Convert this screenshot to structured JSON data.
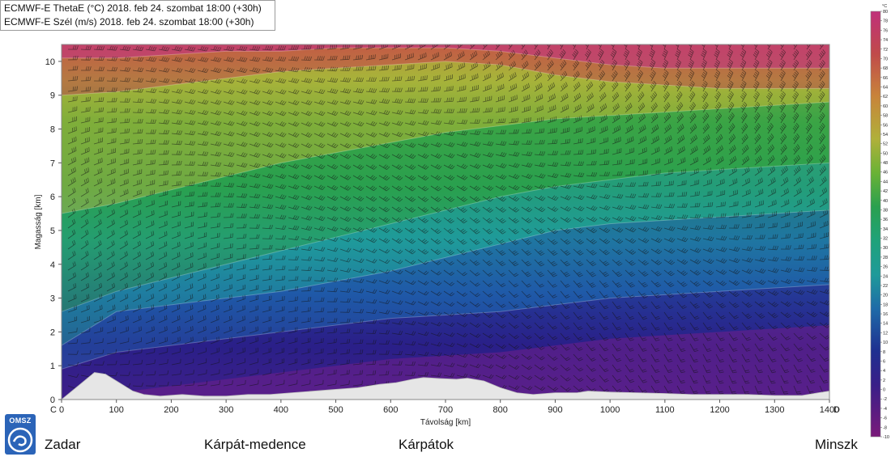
{
  "header": {
    "line1": "ECMWF-E ThetaE (°C) 2018. feb 24. szombat 18:00 (+30h)",
    "line2": "ECMWF-E Szél (m/s) 2018. feb 24. szombat 18:00 (+30h)"
  },
  "logo": {
    "text": "OMSZ",
    "icon": "omsz-logo-icon"
  },
  "places": [
    "Zadar",
    "Kárpát-medence",
    "Kárpátok",
    "Minszk"
  ],
  "colors": {
    "terrain": "#e6e6e6",
    "scale": [
      "#7a1a7a",
      "#5a1f8a",
      "#2a1f88",
      "#1f2f90",
      "#1f5aa8",
      "#1f8a9a",
      "#1fa28a",
      "#2aa04f",
      "#4ea83a",
      "#7ab535",
      "#a8b23a",
      "#c8a43a",
      "#c8783a",
      "#c04a4a",
      "#b03060",
      "#c0307a"
    ]
  },
  "chart_data": {
    "type": "heatmap",
    "title": "",
    "xlabel": "Távolság [km]",
    "ylabel": "Magasság [km]",
    "xlim": [
      0,
      1400
    ],
    "ylim": [
      0,
      10.5
    ],
    "x_ticks": [
      "0",
      "100",
      "200",
      "300",
      "400",
      "500",
      "600",
      "700",
      "800",
      "900",
      "1000",
      "1100",
      "1200",
      "1300",
      "1400"
    ],
    "y_ticks": [
      "0",
      "1",
      "2",
      "3",
      "4",
      "5",
      "6",
      "7",
      "8",
      "9",
      "10"
    ],
    "x_start_label": "C",
    "x_end_label": "D",
    "colorbar": {
      "unit": "°C",
      "min": -10,
      "max": 80,
      "ticks": [
        "80",
        "78",
        "76",
        "74",
        "72",
        "70",
        "68",
        "66",
        "64",
        "62",
        "60",
        "58",
        "56",
        "54",
        "52",
        "50",
        "48",
        "46",
        "44",
        "42",
        "40",
        "38",
        "36",
        "34",
        "32",
        "30",
        "28",
        "26",
        "24",
        "22",
        "20",
        "18",
        "16",
        "14",
        "12",
        "10",
        "8",
        "6",
        "4",
        "2",
        "0",
        "-2",
        "-4",
        "-6",
        "-8",
        "-10"
      ]
    },
    "terrain_km": {
      "x": [
        0,
        30,
        60,
        80,
        100,
        130,
        150,
        180,
        220,
        260,
        300,
        340,
        380,
        420,
        460,
        500,
        540,
        580,
        610,
        640,
        660,
        690,
        720,
        740,
        770,
        800,
        830,
        860,
        900,
        940,
        960,
        1000,
        1050,
        1100,
        1150,
        1200,
        1250,
        1300,
        1350,
        1380,
        1400
      ],
      "y": [
        0,
        0.4,
        0.8,
        0.75,
        0.55,
        0.25,
        0.15,
        0.1,
        0.15,
        0.1,
        0.1,
        0.15,
        0.15,
        0.2,
        0.25,
        0.3,
        0.35,
        0.45,
        0.5,
        0.6,
        0.65,
        0.62,
        0.6,
        0.63,
        0.55,
        0.35,
        0.2,
        0.15,
        0.2,
        0.2,
        0.25,
        0.22,
        0.2,
        0.18,
        0.15,
        0.15,
        0.15,
        0.12,
        0.12,
        0.2,
        0.25
      ]
    },
    "thetae_isolines_km": {
      "x": [
        0,
        100,
        200,
        300,
        400,
        500,
        600,
        700,
        800,
        900,
        1000,
        1100,
        1200,
        1300,
        1400
      ],
      "levels": [
        {
          "value": 0,
          "y": [
            0.9,
            1.4,
            1.6,
            1.8,
            2.0,
            2.2,
            2.4,
            2.5,
            2.6,
            2.8,
            3.0,
            3.1,
            3.2,
            3.3,
            3.4
          ]
        },
        {
          "value": 8,
          "y": [
            1.6,
            2.6,
            2.8,
            3.0,
            3.2,
            3.5,
            3.8,
            4.2,
            4.6,
            5.0,
            5.2,
            5.3,
            5.4,
            5.5,
            5.6
          ]
        },
        {
          "value": 16,
          "y": [
            2.6,
            3.2,
            3.6,
            4.0,
            4.4,
            4.8,
            5.2,
            5.6,
            6.0,
            6.3,
            6.5,
            6.7,
            6.8,
            6.9,
            7.0
          ]
        },
        {
          "value": 28,
          "y": [
            5.5,
            5.8,
            6.2,
            6.6,
            7.0,
            7.3,
            7.6,
            7.9,
            8.1,
            8.3,
            8.4,
            8.5,
            8.6,
            8.7,
            8.8
          ]
        },
        {
          "value": 36,
          "y": [
            9.0,
            9.1,
            9.3,
            9.5,
            9.7,
            9.8,
            9.9,
            10.0,
            9.9,
            9.6,
            9.4,
            9.3,
            9.2,
            9.2,
            9.2
          ]
        },
        {
          "value": 48,
          "y": [
            10.1,
            10.1,
            10.2,
            10.3,
            10.3,
            10.4,
            10.4,
            10.4,
            10.3,
            10.1,
            9.9,
            9.8,
            9.8,
            9.8,
            9.8
          ]
        }
      ]
    }
  }
}
